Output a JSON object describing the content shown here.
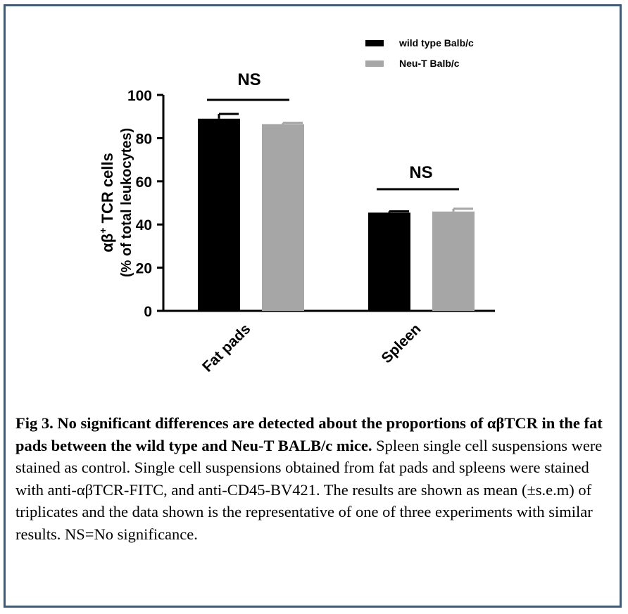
{
  "chart_data": {
    "type": "bar",
    "categories": [
      "Fat pads",
      "Spleen"
    ],
    "series": [
      {
        "name": "wild type Balb/c",
        "color": "#000000",
        "values": [
          89,
          45.5
        ],
        "errors": [
          2.2,
          0.6
        ]
      },
      {
        "name": "Neu-T Balb/c",
        "color": "#a6a6a6",
        "values": [
          86.5,
          46
        ],
        "errors": [
          0.6,
          1.3
        ]
      }
    ],
    "ylabel_line1": "αβ",
    "ylabel_sup": "+",
    "ylabel_line1_rest": " TCR cells",
    "ylabel_line2": "(% of total leukocytes)",
    "ylim": [
      0,
      100
    ],
    "yticks": [
      "0",
      "20",
      "40",
      "60",
      "80",
      "100"
    ],
    "significance": [
      {
        "category": "Fat pads",
        "label": "NS"
      },
      {
        "category": "Spleen",
        "label": "NS"
      }
    ],
    "legend_position": "top-right"
  },
  "caption": {
    "title": "Fig 3. No significant differences are detected about the proportions of αβTCR in the fat pads between the wild type and Neu-T BALB/c mice.",
    "body": "Spleen single cell suspensions were stained as control. Single cell suspensions obtained from fat pads and spleens were stained with anti-αβTCR-FITC, and anti-CD45-BV421. The results are shown as mean (±s.e.m) of triplicates and the data shown is the representative of one of three experiments with similar results. NS=No significance."
  }
}
